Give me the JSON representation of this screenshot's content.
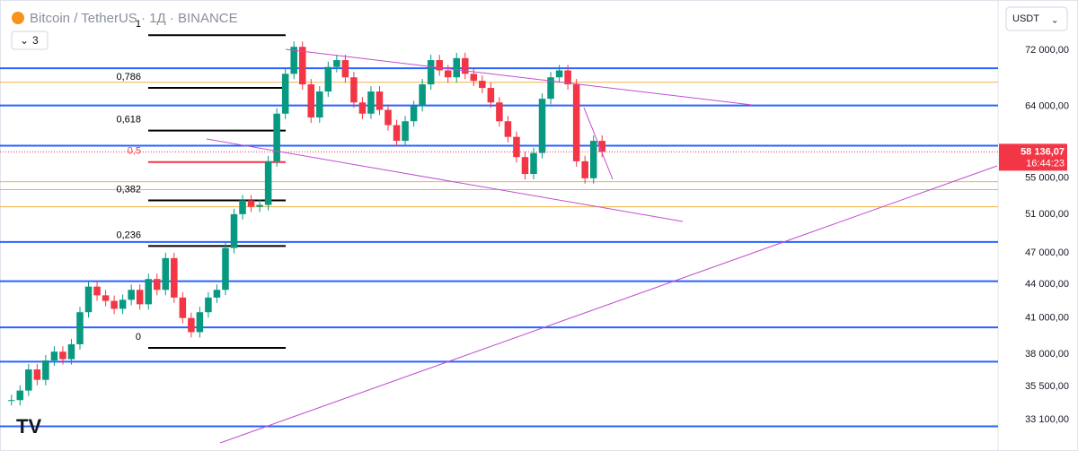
{
  "chart_data": {
    "type": "candlestick",
    "title": "Bitcoin / TetherUS · 1Д · BINANCE",
    "indicator_count": "3",
    "currency": "USDT",
    "log_scale": true,
    "ylim": [
      31000,
      80000
    ],
    "yticks": [
      {
        "value": 72000,
        "label": "72 000,00"
      },
      {
        "value": 64000,
        "label": "64 000,00"
      },
      {
        "value": 55000,
        "label": "55 000,00"
      },
      {
        "value": 51000,
        "label": "51 000,00"
      },
      {
        "value": 47000,
        "label": "47 000,00"
      },
      {
        "value": 44000,
        "label": "44 000,00"
      },
      {
        "value": 41000,
        "label": "41 000,00"
      },
      {
        "value": 38000,
        "label": "38 000,00"
      },
      {
        "value": 35500,
        "label": "35 500,00"
      },
      {
        "value": 33100,
        "label": "33 100,00"
      }
    ],
    "last_price": {
      "value": 58136.07,
      "label": "58 136,07",
      "countdown": "16:44:23",
      "color": "#f23645"
    },
    "closes": [
      34500,
      35200,
      36800,
      36000,
      37500,
      38200,
      37600,
      38800,
      41500,
      43800,
      43000,
      42500,
      41800,
      42600,
      43500,
      42200,
      44500,
      43500,
      46500,
      42800,
      41000,
      39800,
      41500,
      42800,
      43500,
      47500,
      51000,
      52500,
      51800,
      52000,
      57000,
      63000,
      68500,
      72500,
      67000,
      62500,
      66000,
      69500,
      70500,
      68000,
      64500,
      63000,
      66000,
      63500,
      61500,
      59500,
      62000,
      64000,
      67000,
      70500,
      69000,
      68000,
      70800,
      68500,
      67500,
      66500,
      64500,
      62000,
      60000,
      57500,
      55500,
      58000,
      65000,
      68000,
      69000,
      67000,
      57000,
      55000,
      59500,
      58136.07
    ],
    "up_color": "#089981",
    "down_color": "#f23645",
    "fib_levels": [
      {
        "label": "1",
        "value": 74300,
        "color": "#000000"
      },
      {
        "label": "0,786",
        "value": 66500,
        "color": "#000000"
      },
      {
        "label": "0,618",
        "value": 60800,
        "color": "#000000"
      },
      {
        "label": "0,5",
        "value": 56900,
        "color": "#f23645"
      },
      {
        "label": "0,382",
        "value": 52500,
        "color": "#000000"
      },
      {
        "label": "0,236",
        "value": 47700,
        "color": "#000000"
      },
      {
        "label": "0",
        "value": 38500,
        "color": "#000000"
      }
    ],
    "support_levels": {
      "color": "#2962ff",
      "values": [
        69300,
        64100,
        58900,
        48100,
        44300,
        40200,
        37400,
        32650
      ]
    },
    "orange_levels": {
      "color": "#f5b041",
      "values": [
        67300,
        54600,
        53700,
        51800
      ]
    }
  }
}
